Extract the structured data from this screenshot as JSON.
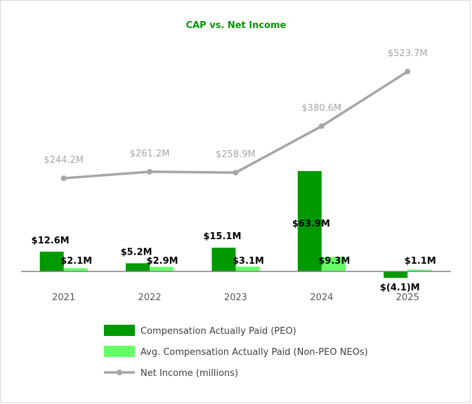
{
  "chart_data": {
    "type": "bar",
    "title": "CAP vs. Net Income",
    "categories": [
      "2021",
      "2022",
      "2023",
      "2024",
      "2025"
    ],
    "series": [
      {
        "name": "Compensation Actually Paid (PEO)",
        "kind": "bar",
        "color": "#009900",
        "values": [
          12.6,
          5.2,
          15.1,
          63.9,
          -4.1
        ],
        "labels": [
          "$12.6M",
          "$5.2M",
          "$15.1M",
          "$63.9M",
          "$(4.1)M"
        ]
      },
      {
        "name": "Avg. Compensation Actually Paid (Non-PEO NEOs)",
        "kind": "bar",
        "color": "#66FF66",
        "values": [
          2.1,
          2.9,
          3.1,
          9.3,
          1.1
        ],
        "labels": [
          "$2.1M",
          "$2.9M",
          "$3.1M",
          "$9.3M",
          "$1.1M"
        ]
      },
      {
        "name": "Net Income (millions)",
        "kind": "line",
        "color": "#A6A6A6",
        "values": [
          244.2,
          261.2,
          258.9,
          380.6,
          523.7
        ],
        "labels": [
          "$244.2M",
          "$261.2M",
          "$258.9M",
          "$380.6M",
          "$523.7M"
        ]
      }
    ],
    "bar_axis_range": [
      -10,
      100
    ],
    "line_axis_range": [
      -60,
      700
    ],
    "legend_position": "bottom",
    "grid": false,
    "title_color": "#009900",
    "axis_color": "#808080",
    "line_label_color": "#A6A6A6"
  }
}
